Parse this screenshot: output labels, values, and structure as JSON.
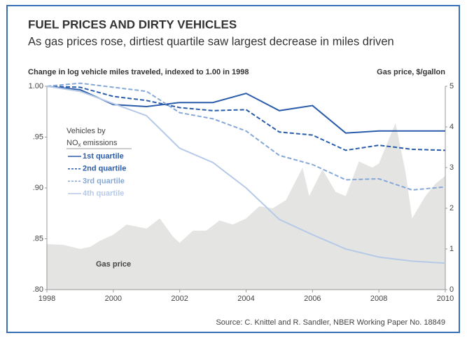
{
  "chart_data": {
    "type": "line",
    "title": "FUEL PRICES AND DIRTY VEHICLES",
    "subtitle": "As gas prices rose, dirtiest quartile saw largest decrease in miles driven",
    "y_label": "Change in log vehicle miles traveled, indexed to 1.00 in 1998",
    "y2_label": "Gas price, $/gallon",
    "source": "Source: C. Knittel and R. Sandler, NBER Working Paper No. 18849",
    "legend_title": [
      "Vehicles by",
      "NO",
      "x",
      "emissions"
    ],
    "x": [
      1998,
      1999,
      2000,
      2001,
      2002,
      2003,
      2004,
      2005,
      2006,
      2007,
      2008,
      2009,
      2010
    ],
    "xlim": [
      1998,
      2010
    ],
    "xticks": [
      1998,
      2000,
      2002,
      2004,
      2006,
      2008,
      2010
    ],
    "ylim": [
      0.8,
      1.0
    ],
    "yticks": [
      {
        "value": 1.0,
        "label": "1.00"
      },
      {
        "value": 0.95,
        "label": ".95"
      },
      {
        "value": 0.9,
        "label": ".90"
      },
      {
        "value": 0.85,
        "label": ".85"
      },
      {
        "value": 0.8,
        "label": ".80"
      }
    ],
    "y2lim": [
      0,
      5
    ],
    "y2ticks": [
      0,
      1,
      2,
      3,
      4,
      5
    ],
    "series": [
      {
        "name": "1st quartile",
        "color": "#2a5caa",
        "dash": false,
        "values": [
          1.0,
          0.9966,
          0.982,
          0.98,
          0.984,
          0.984,
          0.993,
          0.976,
          0.981,
          0.954,
          0.956,
          0.956,
          0.956
        ]
      },
      {
        "name": "2nd quartile",
        "color": "#2a5caa",
        "dash": true,
        "values": [
          1.0,
          0.999,
          0.99,
          0.986,
          0.979,
          0.976,
          0.977,
          0.955,
          0.952,
          0.937,
          0.942,
          0.938,
          0.937
        ]
      },
      {
        "name": "3rd quartile",
        "color": "#86a8d8",
        "dash": true,
        "values": [
          1.0,
          1.003,
          0.999,
          0.995,
          0.974,
          0.968,
          0.956,
          0.932,
          0.923,
          0.908,
          0.909,
          0.898,
          0.901
        ]
      },
      {
        "name": "4th quartile",
        "color": "#b6cae8",
        "dash": false,
        "values": [
          1.0,
          0.995,
          0.983,
          0.971,
          0.939,
          0.925,
          0.9,
          0.869,
          0.854,
          0.84,
          0.832,
          0.828,
          0.826
        ]
      }
    ],
    "gas_price": {
      "name": "Gas price",
      "axis": "y2",
      "color": "#e4e4e2",
      "x": [
        1998.0,
        1998.5,
        1999.0,
        1999.3,
        1999.6,
        2000.0,
        2000.4,
        2000.7,
        2001.0,
        2001.4,
        2001.8,
        2002.0,
        2002.4,
        2002.8,
        2003.2,
        2003.6,
        2004.0,
        2004.4,
        2004.8,
        2005.2,
        2005.7,
        2005.9,
        2006.3,
        2006.7,
        2007.0,
        2007.4,
        2007.8,
        2008.0,
        2008.5,
        2008.8,
        2009.0,
        2009.4,
        2009.7,
        2010.0
      ],
      "values": [
        1.12,
        1.1,
        1.0,
        1.05,
        1.2,
        1.35,
        1.6,
        1.55,
        1.5,
        1.75,
        1.3,
        1.15,
        1.45,
        1.45,
        1.7,
        1.6,
        1.75,
        2.05,
        2.0,
        2.2,
        3.0,
        2.3,
        2.95,
        2.4,
        2.3,
        3.15,
        3.0,
        3.1,
        4.1,
        2.9,
        1.75,
        2.3,
        2.6,
        2.8
      ]
    }
  }
}
